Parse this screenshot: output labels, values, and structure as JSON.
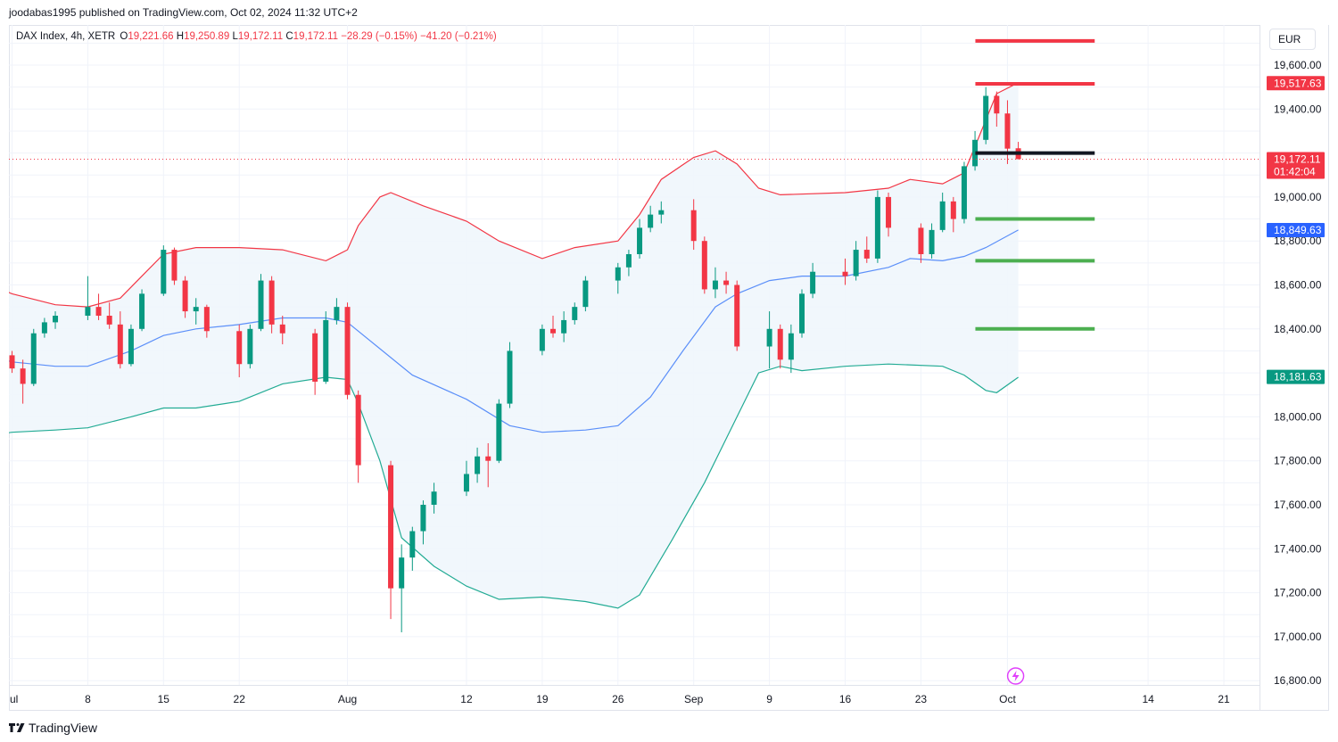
{
  "header": {
    "published": "joodabas1995 published on TradingView.com, Oct 02, 2024 11:32 UTC+2"
  },
  "legend": {
    "symbol": "DAX Index, 4h, XETR",
    "open_label": "O",
    "open": "19,221.66",
    "high_label": "H",
    "high": "19,250.89",
    "low_label": "L",
    "low": "19,172.11",
    "close_label": "C",
    "close": "19,172.11",
    "change": "−28.29 (−0.15%)",
    "change2": "−41.20 (−0.21%)"
  },
  "currency": "EUR",
  "brand": {
    "name": "TradingView"
  },
  "colors": {
    "up": "#089981",
    "down": "#f23645",
    "basis": "#5b8ff9",
    "upper_band": "#f23645",
    "lower_band": "#22ab94",
    "fill": "#f0f6fc",
    "level_red": "#f23645",
    "level_green": "#4caf50",
    "level_black": "#131722"
  },
  "chart_data": {
    "type": "candlestick",
    "instrument": "DAX Index, 4h, XETR",
    "ylim": [
      16750,
      19800
    ],
    "price_ticks": [
      19600,
      19400,
      19000,
      18800,
      18600,
      18400,
      18000,
      17800,
      17600,
      17400,
      17200,
      17000,
      16800
    ],
    "price_tick_labels": [
      "19,600.00",
      "19,400.00",
      "19,000.00",
      "18,800.00",
      "18,600.00",
      "18,400.00",
      "18,000.00",
      "17,800.00",
      "17,600.00",
      "17,400.00",
      "17,200.00",
      "17,000.00",
      "16,800.00"
    ],
    "time_labels": [
      {
        "label": "ul",
        "date": "2024-07-01"
      },
      {
        "label": "8",
        "date": "2024-07-08"
      },
      {
        "label": "15",
        "date": "2024-07-15"
      },
      {
        "label": "22",
        "date": "2024-07-22"
      },
      {
        "label": "Aug",
        "date": "2024-08-01"
      },
      {
        "label": "12",
        "date": "2024-08-12"
      },
      {
        "label": "19",
        "date": "2024-08-19"
      },
      {
        "label": "26",
        "date": "2024-08-26"
      },
      {
        "label": "Sep",
        "date": "2024-09-02"
      },
      {
        "label": "9",
        "date": "2024-09-09"
      },
      {
        "label": "16",
        "date": "2024-09-16"
      },
      {
        "label": "23",
        "date": "2024-09-23"
      },
      {
        "label": "Oct",
        "date": "2024-10-01"
      },
      {
        "label": "14",
        "date": "2024-10-14"
      },
      {
        "label": "21",
        "date": "2024-10-21"
      }
    ],
    "price_badges": [
      {
        "label": "19,517.63",
        "value": 19517.63,
        "color": "#f23645",
        "sub": ""
      },
      {
        "label": "19,172.11",
        "value": 19172.11,
        "color": "#f23645",
        "sub": "01:42:04"
      },
      {
        "label": "18,849.63",
        "value": 18849.63,
        "color": "#2962ff",
        "sub": ""
      },
      {
        "label": "18,181.63",
        "value": 18181.63,
        "color": "#089981",
        "sub": ""
      }
    ],
    "last_price": 19172.11,
    "horizontal_levels": [
      {
        "value": 19710,
        "color": "red",
        "start": "2024-10-01",
        "end": "2024-10-07"
      },
      {
        "value": 19515,
        "color": "red",
        "start": "2024-10-01",
        "end": "2024-10-07"
      },
      {
        "value": 19200,
        "color": "black",
        "start": "2024-10-01",
        "end": "2024-10-07"
      },
      {
        "value": 18900,
        "color": "green",
        "start": "2024-10-01",
        "end": "2024-10-07"
      },
      {
        "value": 18710,
        "color": "green",
        "start": "2024-10-01",
        "end": "2024-10-07"
      },
      {
        "value": 18400,
        "color": "green",
        "start": "2024-10-01",
        "end": "2024-10-07"
      }
    ],
    "bollinger": {
      "upper": [
        [
          "2024-06-28",
          18620
        ],
        [
          "2024-07-01",
          18560
        ],
        [
          "2024-07-05",
          18510
        ],
        [
          "2024-07-08",
          18500
        ],
        [
          "2024-07-11",
          18540
        ],
        [
          "2024-07-13",
          18640
        ],
        [
          "2024-07-15",
          18740
        ],
        [
          "2024-07-18",
          18770
        ],
        [
          "2024-07-22",
          18770
        ],
        [
          "2024-07-26",
          18760
        ],
        [
          "2024-07-30",
          18710
        ],
        [
          "2024-08-01",
          18760
        ],
        [
          "2024-08-02",
          18870
        ],
        [
          "2024-08-04",
          19000
        ],
        [
          "2024-08-05",
          19020
        ],
        [
          "2024-08-08",
          18960
        ],
        [
          "2024-08-12",
          18890
        ],
        [
          "2024-08-15",
          18800
        ],
        [
          "2024-08-19",
          18720
        ],
        [
          "2024-08-22",
          18770
        ],
        [
          "2024-08-26",
          18800
        ],
        [
          "2024-08-28",
          18920
        ],
        [
          "2024-08-30",
          19080
        ],
        [
          "2024-09-02",
          19180
        ],
        [
          "2024-09-04",
          19210
        ],
        [
          "2024-09-06",
          19150
        ],
        [
          "2024-09-08",
          19040
        ],
        [
          "2024-09-10",
          19010
        ],
        [
          "2024-09-16",
          19020
        ],
        [
          "2024-09-20",
          19040
        ],
        [
          "2024-09-22",
          19080
        ],
        [
          "2024-09-25",
          19060
        ],
        [
          "2024-09-27",
          19110
        ],
        [
          "2024-09-29",
          19350
        ],
        [
          "2024-09-30",
          19470
        ],
        [
          "2024-10-02",
          19520
        ]
      ],
      "basis": [
        [
          "2024-06-28",
          18290
        ],
        [
          "2024-07-01",
          18250
        ],
        [
          "2024-07-05",
          18230
        ],
        [
          "2024-07-08",
          18230
        ],
        [
          "2024-07-12",
          18300
        ],
        [
          "2024-07-15",
          18370
        ],
        [
          "2024-07-18",
          18400
        ],
        [
          "2024-07-22",
          18420
        ],
        [
          "2024-07-26",
          18450
        ],
        [
          "2024-07-30",
          18450
        ],
        [
          "2024-08-01",
          18430
        ],
        [
          "2024-08-04",
          18310
        ],
        [
          "2024-08-07",
          18190
        ],
        [
          "2024-08-12",
          18080
        ],
        [
          "2024-08-16",
          17960
        ],
        [
          "2024-08-19",
          17930
        ],
        [
          "2024-08-23",
          17940
        ],
        [
          "2024-08-26",
          17960
        ],
        [
          "2024-08-29",
          18090
        ],
        [
          "2024-09-01",
          18300
        ],
        [
          "2024-09-04",
          18500
        ],
        [
          "2024-09-06",
          18560
        ],
        [
          "2024-09-09",
          18620
        ],
        [
          "2024-09-12",
          18640
        ],
        [
          "2024-09-16",
          18640
        ],
        [
          "2024-09-20",
          18680
        ],
        [
          "2024-09-22",
          18720
        ],
        [
          "2024-09-25",
          18710
        ],
        [
          "2024-09-27",
          18730
        ],
        [
          "2024-09-29",
          18770
        ],
        [
          "2024-10-02",
          18850
        ]
      ],
      "lower": [
        [
          "2024-06-28",
          17910
        ],
        [
          "2024-07-01",
          17930
        ],
        [
          "2024-07-05",
          17940
        ],
        [
          "2024-07-08",
          17950
        ],
        [
          "2024-07-12",
          18000
        ],
        [
          "2024-07-15",
          18040
        ],
        [
          "2024-07-18",
          18040
        ],
        [
          "2024-07-22",
          18070
        ],
        [
          "2024-07-26",
          18150
        ],
        [
          "2024-07-30",
          18180
        ],
        [
          "2024-08-01",
          18170
        ],
        [
          "2024-08-02",
          18060
        ],
        [
          "2024-08-04",
          17800
        ],
        [
          "2024-08-06",
          17450
        ],
        [
          "2024-08-09",
          17320
        ],
        [
          "2024-08-12",
          17230
        ],
        [
          "2024-08-15",
          17170
        ],
        [
          "2024-08-19",
          17180
        ],
        [
          "2024-08-23",
          17160
        ],
        [
          "2024-08-26",
          17130
        ],
        [
          "2024-08-28",
          17190
        ],
        [
          "2024-08-31",
          17440
        ],
        [
          "2024-09-03",
          17700
        ],
        [
          "2024-09-06",
          18000
        ],
        [
          "2024-09-08",
          18200
        ],
        [
          "2024-09-10",
          18230
        ],
        [
          "2024-09-12",
          18210
        ],
        [
          "2024-09-16",
          18230
        ],
        [
          "2024-09-20",
          18240
        ],
        [
          "2024-09-25",
          18230
        ],
        [
          "2024-09-27",
          18190
        ],
        [
          "2024-09-29",
          18120
        ],
        [
          "2024-09-30",
          18110
        ],
        [
          "2024-10-02",
          18180
        ]
      ]
    },
    "candles": [
      {
        "d": "2024-06-28",
        "o": 18270,
        "h": 18310,
        "l": 18220,
        "c": 18280
      },
      {
        "d": "2024-07-01",
        "o": 18280,
        "h": 18300,
        "l": 18200,
        "c": 18220
      },
      {
        "d": "2024-07-02",
        "o": 18220,
        "h": 18260,
        "l": 18060,
        "c": 18150
      },
      {
        "d": "2024-07-03",
        "o": 18150,
        "h": 18400,
        "l": 18140,
        "c": 18380
      },
      {
        "d": "2024-07-04",
        "o": 18380,
        "h": 18450,
        "l": 18360,
        "c": 18430
      },
      {
        "d": "2024-07-05",
        "o": 18430,
        "h": 18480,
        "l": 18400,
        "c": 18460
      },
      {
        "d": "2024-07-08",
        "o": 18460,
        "h": 18640,
        "l": 18440,
        "c": 18500
      },
      {
        "d": "2024-07-09",
        "o": 18500,
        "h": 18560,
        "l": 18440,
        "c": 18460
      },
      {
        "d": "2024-07-10",
        "o": 18460,
        "h": 18520,
        "l": 18400,
        "c": 18420
      },
      {
        "d": "2024-07-11",
        "o": 18420,
        "h": 18480,
        "l": 18220,
        "c": 18240
      },
      {
        "d": "2024-07-12",
        "o": 18240,
        "h": 18420,
        "l": 18230,
        "c": 18400
      },
      {
        "d": "2024-07-13",
        "o": 18400,
        "h": 18580,
        "l": 18390,
        "c": 18560
      },
      {
        "d": "2024-07-15",
        "o": 18560,
        "h": 18780,
        "l": 18550,
        "c": 18760
      },
      {
        "d": "2024-07-16",
        "o": 18760,
        "h": 18770,
        "l": 18600,
        "c": 18620
      },
      {
        "d": "2024-07-17",
        "o": 18620,
        "h": 18640,
        "l": 18450,
        "c": 18480
      },
      {
        "d": "2024-07-18",
        "o": 18480,
        "h": 18540,
        "l": 18420,
        "c": 18500
      },
      {
        "d": "2024-07-19",
        "o": 18500,
        "h": 18510,
        "l": 18360,
        "c": 18390
      },
      {
        "d": "2024-07-22",
        "o": 18390,
        "h": 18420,
        "l": 18180,
        "c": 18240
      },
      {
        "d": "2024-07-23",
        "o": 18240,
        "h": 18420,
        "l": 18220,
        "c": 18400
      },
      {
        "d": "2024-07-24",
        "o": 18400,
        "h": 18650,
        "l": 18390,
        "c": 18620
      },
      {
        "d": "2024-07-25",
        "o": 18620,
        "h": 18640,
        "l": 18380,
        "c": 18420
      },
      {
        "d": "2024-07-26",
        "o": 18420,
        "h": 18460,
        "l": 18330,
        "c": 18380
      },
      {
        "d": "2024-07-29",
        "o": 18380,
        "h": 18400,
        "l": 18100,
        "c": 18160
      },
      {
        "d": "2024-07-30",
        "o": 18160,
        "h": 18480,
        "l": 18150,
        "c": 18440
      },
      {
        "d": "2024-07-31",
        "o": 18440,
        "h": 18540,
        "l": 18420,
        "c": 18500
      },
      {
        "d": "2024-08-01",
        "o": 18500,
        "h": 18520,
        "l": 18080,
        "c": 18100
      },
      {
        "d": "2024-08-02",
        "o": 18100,
        "h": 18120,
        "l": 17700,
        "c": 17780
      },
      {
        "d": "2024-08-05",
        "o": 17780,
        "h": 17800,
        "l": 17080,
        "c": 17220
      },
      {
        "d": "2024-08-06",
        "o": 17220,
        "h": 17420,
        "l": 17020,
        "c": 17360
      },
      {
        "d": "2024-08-07",
        "o": 17360,
        "h": 17500,
        "l": 17300,
        "c": 17480
      },
      {
        "d": "2024-08-08",
        "o": 17480,
        "h": 17620,
        "l": 17420,
        "c": 17600
      },
      {
        "d": "2024-08-09",
        "o": 17600,
        "h": 17700,
        "l": 17560,
        "c": 17660
      },
      {
        "d": "2024-08-12",
        "o": 17660,
        "h": 17800,
        "l": 17640,
        "c": 17740
      },
      {
        "d": "2024-08-13",
        "o": 17740,
        "h": 17860,
        "l": 17700,
        "c": 17820
      },
      {
        "d": "2024-08-14",
        "o": 17820,
        "h": 17880,
        "l": 17680,
        "c": 17800
      },
      {
        "d": "2024-08-15",
        "o": 17800,
        "h": 18080,
        "l": 17790,
        "c": 18060
      },
      {
        "d": "2024-08-16",
        "o": 18060,
        "h": 18340,
        "l": 18040,
        "c": 18300
      },
      {
        "d": "2024-08-19",
        "o": 18300,
        "h": 18420,
        "l": 18280,
        "c": 18400
      },
      {
        "d": "2024-08-20",
        "o": 18400,
        "h": 18460,
        "l": 18360,
        "c": 18380
      },
      {
        "d": "2024-08-21",
        "o": 18380,
        "h": 18480,
        "l": 18340,
        "c": 18440
      },
      {
        "d": "2024-08-22",
        "o": 18440,
        "h": 18520,
        "l": 18420,
        "c": 18500
      },
      {
        "d": "2024-08-23",
        "o": 18500,
        "h": 18640,
        "l": 18480,
        "c": 18620
      },
      {
        "d": "2024-08-26",
        "o": 18620,
        "h": 18700,
        "l": 18560,
        "c": 18680
      },
      {
        "d": "2024-08-27",
        "o": 18680,
        "h": 18760,
        "l": 18640,
        "c": 18740
      },
      {
        "d": "2024-08-28",
        "o": 18740,
        "h": 18900,
        "l": 18720,
        "c": 18860
      },
      {
        "d": "2024-08-29",
        "o": 18860,
        "h": 18960,
        "l": 18840,
        "c": 18920
      },
      {
        "d": "2024-08-30",
        "o": 18920,
        "h": 18980,
        "l": 18880,
        "c": 18940
      },
      {
        "d": "2024-09-02",
        "o": 18940,
        "h": 18990,
        "l": 18760,
        "c": 18800
      },
      {
        "d": "2024-09-03",
        "o": 18800,
        "h": 18820,
        "l": 18560,
        "c": 18580
      },
      {
        "d": "2024-09-04",
        "o": 18580,
        "h": 18680,
        "l": 18540,
        "c": 18620
      },
      {
        "d": "2024-09-05",
        "o": 18620,
        "h": 18660,
        "l": 18560,
        "c": 18600
      },
      {
        "d": "2024-09-06",
        "o": 18600,
        "h": 18620,
        "l": 18300,
        "c": 18320
      },
      {
        "d": "2024-09-09",
        "o": 18320,
        "h": 18480,
        "l": 18220,
        "c": 18400
      },
      {
        "d": "2024-09-10",
        "o": 18400,
        "h": 18420,
        "l": 18220,
        "c": 18260
      },
      {
        "d": "2024-09-11",
        "o": 18260,
        "h": 18420,
        "l": 18200,
        "c": 18380
      },
      {
        "d": "2024-09-12",
        "o": 18380,
        "h": 18580,
        "l": 18360,
        "c": 18560
      },
      {
        "d": "2024-09-13",
        "o": 18560,
        "h": 18700,
        "l": 18540,
        "c": 18660
      },
      {
        "d": "2024-09-16",
        "o": 18660,
        "h": 18720,
        "l": 18600,
        "c": 18640
      },
      {
        "d": "2024-09-17",
        "o": 18640,
        "h": 18800,
        "l": 18620,
        "c": 18760
      },
      {
        "d": "2024-09-18",
        "o": 18760,
        "h": 18820,
        "l": 18700,
        "c": 18720
      },
      {
        "d": "2024-09-19",
        "o": 18720,
        "h": 19030,
        "l": 18700,
        "c": 19000
      },
      {
        "d": "2024-09-20",
        "o": 19000,
        "h": 19020,
        "l": 18820,
        "c": 18860
      },
      {
        "d": "2024-09-23",
        "o": 18860,
        "h": 18880,
        "l": 18700,
        "c": 18740
      },
      {
        "d": "2024-09-24",
        "o": 18740,
        "h": 18880,
        "l": 18720,
        "c": 18850
      },
      {
        "d": "2024-09-25",
        "o": 18850,
        "h": 19020,
        "l": 18840,
        "c": 18980
      },
      {
        "d": "2024-09-26",
        "o": 18980,
        "h": 19000,
        "l": 18840,
        "c": 18900
      },
      {
        "d": "2024-09-27",
        "o": 18900,
        "h": 19160,
        "l": 18880,
        "c": 19140
      },
      {
        "d": "2024-09-28",
        "o": 19140,
        "h": 19300,
        "l": 19120,
        "c": 19260
      },
      {
        "d": "2024-09-29",
        "o": 19260,
        "h": 19500,
        "l": 19240,
        "c": 19460
      },
      {
        "d": "2024-09-30",
        "o": 19460,
        "h": 19480,
        "l": 19320,
        "c": 19380
      },
      {
        "d": "2024-10-01",
        "o": 19380,
        "h": 19440,
        "l": 19150,
        "c": 19220
      },
      {
        "d": "2024-10-02",
        "o": 19221.66,
        "h": 19250.89,
        "l": 19172.11,
        "c": 19172.11
      }
    ]
  }
}
